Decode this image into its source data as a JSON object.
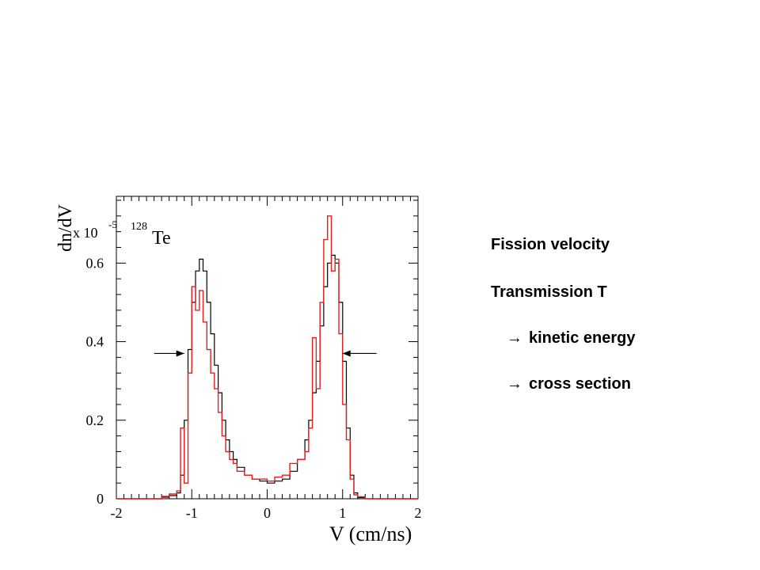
{
  "chart_data": {
    "type": "line",
    "ylabel": "dn/dV",
    "scale_label": "x 10",
    "scale_exponent": "-5",
    "nucleus_mass": "128",
    "nucleus_symbol": "Te",
    "xlabel": "V (cm/ns)",
    "xlim": [
      -2,
      2
    ],
    "ylim": [
      0,
      0.77
    ],
    "x_ticks": [
      "-2",
      "-1",
      "0",
      "1",
      "2"
    ],
    "y_ticks": [
      "0",
      "0.2",
      "0.4",
      "0.6"
    ],
    "arrows": [
      {
        "name": "left-arrow",
        "from_x": -1.5,
        "to_x": -1.1,
        "y": 0.37
      },
      {
        "name": "right-arrow",
        "from_x": 1.45,
        "to_x": 1.0,
        "y": 0.37
      }
    ],
    "series": [
      {
        "color": "#000000",
        "x": [
          -2.0,
          -1.7,
          -1.4,
          -1.3,
          -1.2,
          -1.15,
          -1.1,
          -1.05,
          -1.0,
          -0.95,
          -0.9,
          -0.85,
          -0.8,
          -0.75,
          -0.7,
          -0.65,
          -0.6,
          -0.55,
          -0.5,
          -0.45,
          -0.4,
          -0.3,
          -0.2,
          -0.1,
          0.0,
          0.1,
          0.2,
          0.3,
          0.4,
          0.5,
          0.55,
          0.6,
          0.65,
          0.7,
          0.75,
          0.8,
          0.85,
          0.9,
          0.95,
          1.0,
          1.05,
          1.1,
          1.15,
          1.2,
          1.3,
          1.5,
          2.0
        ],
        "y": [
          0,
          0,
          0.004,
          0.008,
          0.015,
          0.06,
          0.2,
          0.38,
          0.5,
          0.58,
          0.61,
          0.58,
          0.5,
          0.42,
          0.34,
          0.27,
          0.2,
          0.15,
          0.12,
          0.1,
          0.08,
          0.06,
          0.05,
          0.045,
          0.04,
          0.045,
          0.05,
          0.07,
          0.1,
          0.15,
          0.2,
          0.27,
          0.35,
          0.44,
          0.54,
          0.6,
          0.62,
          0.6,
          0.5,
          0.35,
          0.18,
          0.06,
          0.015,
          0.003,
          0,
          0,
          0
        ]
      },
      {
        "color": "#e02020",
        "x": [
          -2.0,
          -1.7,
          -1.4,
          -1.3,
          -1.2,
          -1.15,
          -1.1,
          -1.05,
          -1.0,
          -0.95,
          -0.9,
          -0.85,
          -0.8,
          -0.75,
          -0.7,
          -0.65,
          -0.6,
          -0.55,
          -0.5,
          -0.45,
          -0.4,
          -0.3,
          -0.2,
          -0.1,
          0.0,
          0.1,
          0.2,
          0.3,
          0.4,
          0.5,
          0.55,
          0.6,
          0.65,
          0.7,
          0.75,
          0.8,
          0.85,
          0.9,
          0.95,
          1.0,
          1.05,
          1.1,
          1.15,
          1.2,
          1.3,
          1.5,
          2.0
        ],
        "y": [
          0,
          0,
          0.006,
          0.012,
          0.02,
          0.18,
          0.04,
          0.32,
          0.54,
          0.48,
          0.53,
          0.45,
          0.38,
          0.32,
          0.28,
          0.22,
          0.16,
          0.12,
          0.1,
          0.09,
          0.07,
          0.06,
          0.05,
          0.05,
          0.045,
          0.055,
          0.06,
          0.09,
          0.1,
          0.12,
          0.18,
          0.41,
          0.28,
          0.5,
          0.66,
          0.72,
          0.58,
          0.61,
          0.42,
          0.24,
          0.15,
          0.05,
          0.01,
          0.005,
          0,
          0,
          0
        ]
      }
    ]
  },
  "notes": {
    "line1": "Fission velocity",
    "line2": "Transmission  T",
    "line3_arrow": "→",
    "line3": "kinetic energy",
    "line4_arrow": "→",
    "line4": "cross section"
  }
}
